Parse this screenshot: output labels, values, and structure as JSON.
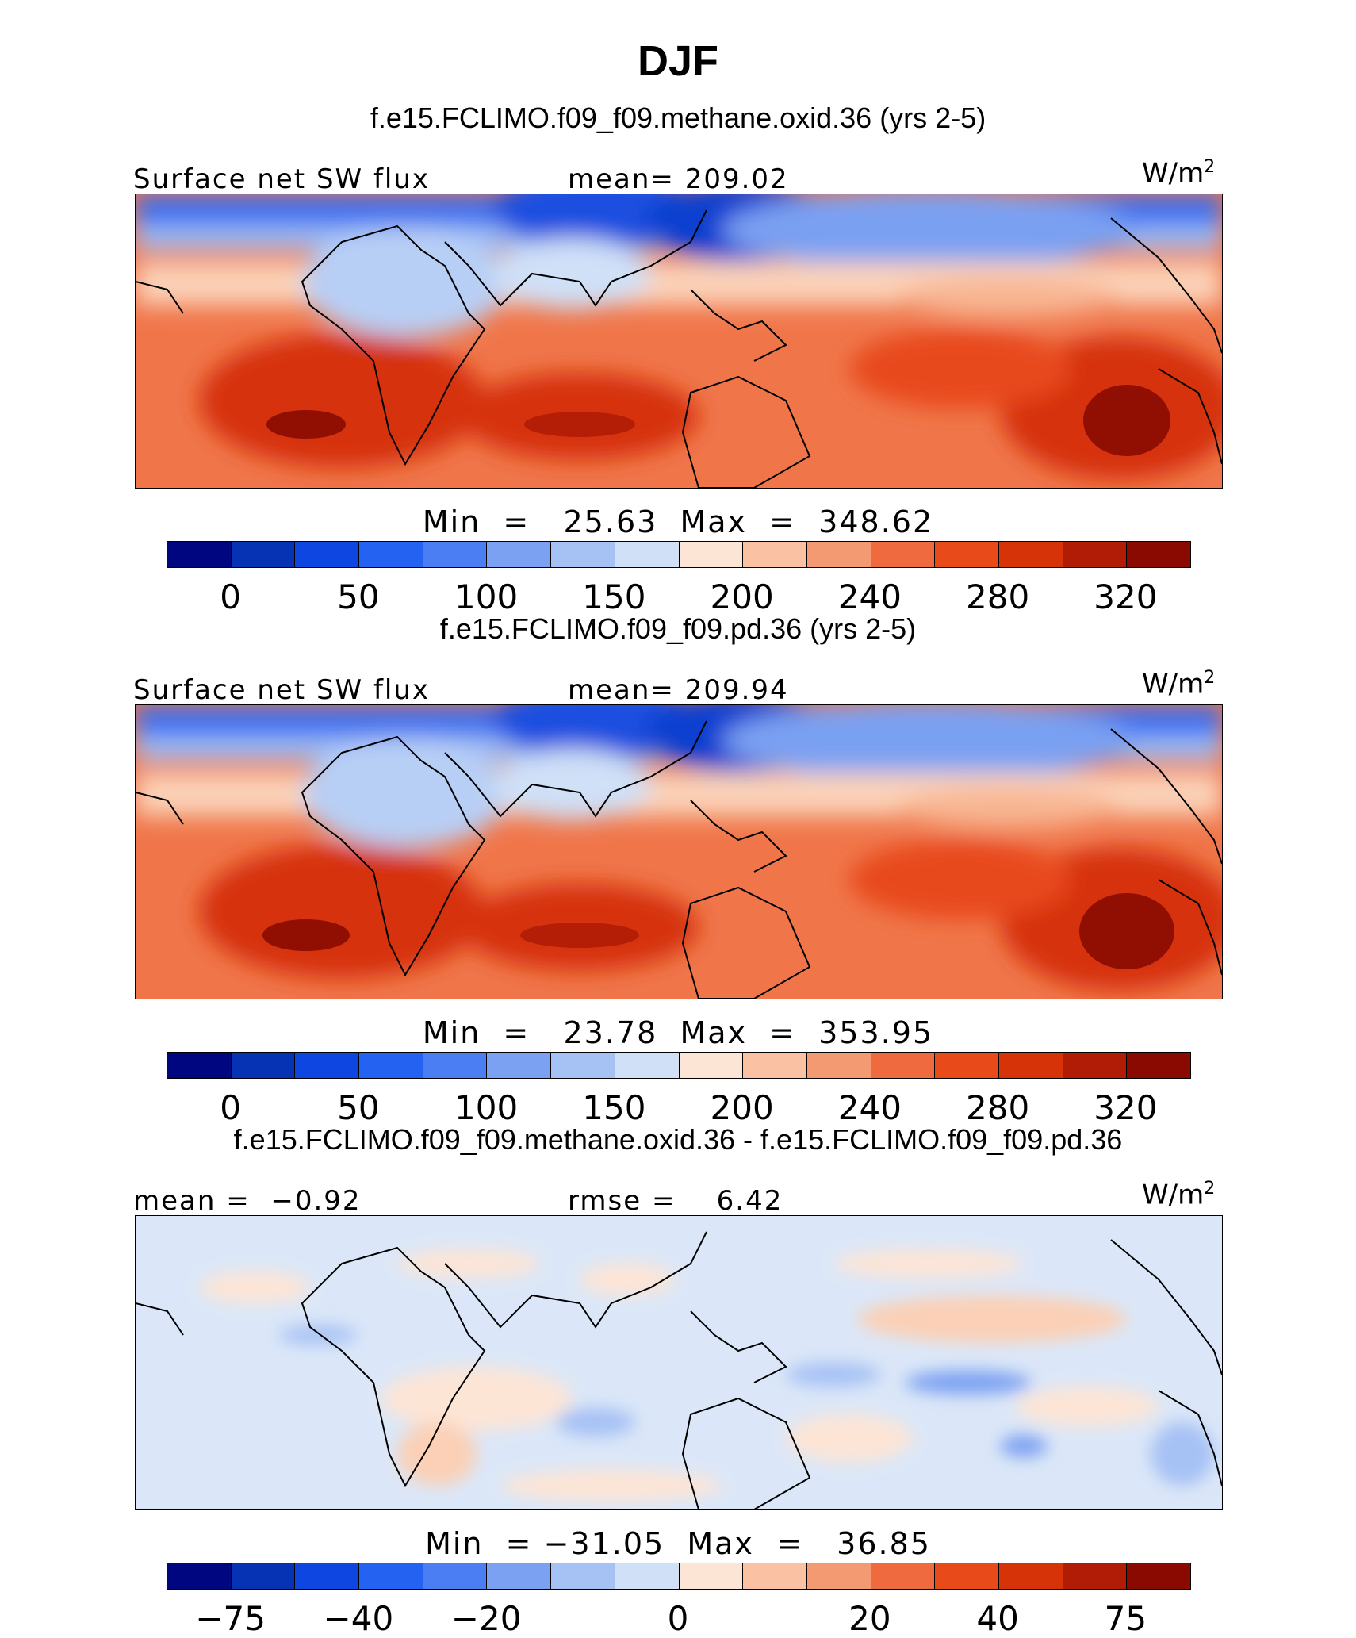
{
  "title": "DJF",
  "panels": [
    {
      "case_title": "f.e15.FCLIMO.f09_f09.methane.oxid.36 (yrs 2-5)",
      "left_label": "Surface net SW flux",
      "center_label": "mean= 209.02",
      "units": "W/m",
      "units_sup": "2",
      "minmax": "Min  =   25.63  Max  =  348.62",
      "colorbar_ticks": [
        "0",
        "50",
        "100",
        "150",
        "200",
        "240",
        "280",
        "320"
      ]
    },
    {
      "case_title": "f.e15.FCLIMO.f09_f09.pd.36 (yrs 2-5)",
      "left_label": "Surface net SW flux",
      "center_label": "mean= 209.94",
      "units": "W/m",
      "units_sup": "2",
      "minmax": "Min  =   23.78  Max  =  353.95",
      "colorbar_ticks": [
        "0",
        "50",
        "100",
        "150",
        "200",
        "240",
        "280",
        "320"
      ]
    },
    {
      "case_title": "f.e15.FCLIMO.f09_f09.methane.oxid.36 - f.e15.FCLIMO.f09_f09.pd.36",
      "left_label": "mean =  −0.92",
      "center_label": "rmse =    6.42",
      "units": "W/m",
      "units_sup": "2",
      "minmax": "Min  = −31.05  Max  =   36.85",
      "colorbar_ticks": [
        "−75",
        "−40",
        "−20",
        "0",
        "20",
        "40",
        "75"
      ]
    }
  ],
  "colors": {
    "palette": [
      "#00067f",
      "#0632b4",
      "#0d46e0",
      "#2463f2",
      "#4a7ef2",
      "#7ba1f2",
      "#a6c1f4",
      "#cfe0f7",
      "#fde5d5",
      "#fbc1a3",
      "#f49a72",
      "#f06a40",
      "#e84a1a",
      "#d63308",
      "#b01c06",
      "#8a0a02"
    ]
  }
}
